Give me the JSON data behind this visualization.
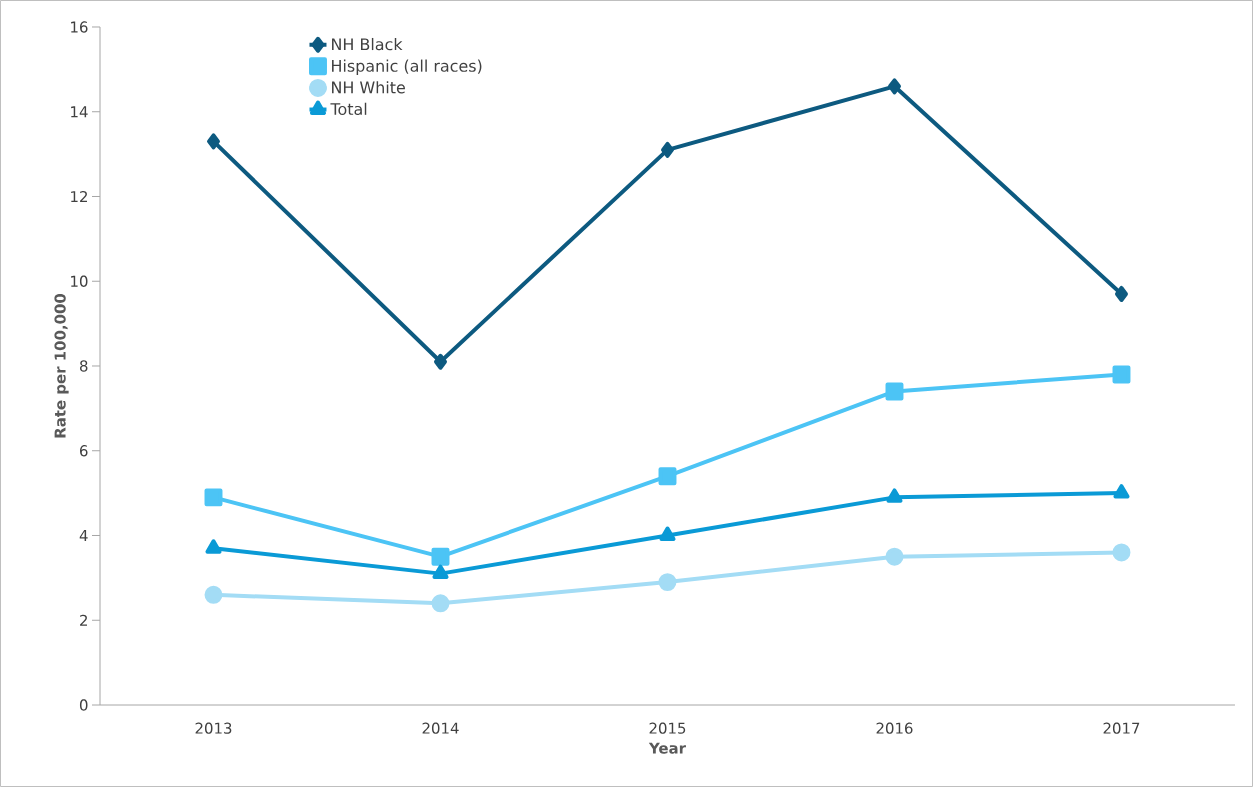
{
  "chart_data": {
    "type": "line",
    "xlabel": "Year",
    "ylabel": "Rate per 100,000",
    "categories": [
      "2013",
      "2014",
      "2015",
      "2016",
      "2017"
    ],
    "ylim": [
      0,
      16
    ],
    "yticks": [
      0,
      2,
      4,
      6,
      8,
      10,
      12,
      14,
      16
    ],
    "legend": "top left",
    "grid": false,
    "line_style": "solid",
    "series": [
      {
        "name": "NH Black",
        "color": "#0d5a80",
        "marker": "diamond",
        "values": [
          13.3,
          8.1,
          13.1,
          14.6,
          9.7
        ]
      },
      {
        "name": "Hispanic (all races)",
        "color": "#4cc4f5",
        "marker": "square",
        "values": [
          4.9,
          3.5,
          5.4,
          7.4,
          7.8
        ]
      },
      {
        "name": "NH White",
        "color": "#a3dcf5",
        "marker": "circle",
        "values": [
          2.6,
          2.4,
          2.9,
          3.5,
          3.6
        ]
      },
      {
        "name": "Total",
        "color": "#0a9ad6",
        "marker": "triangle",
        "values": [
          3.7,
          3.1,
          4.0,
          4.9,
          5.0
        ]
      }
    ]
  }
}
